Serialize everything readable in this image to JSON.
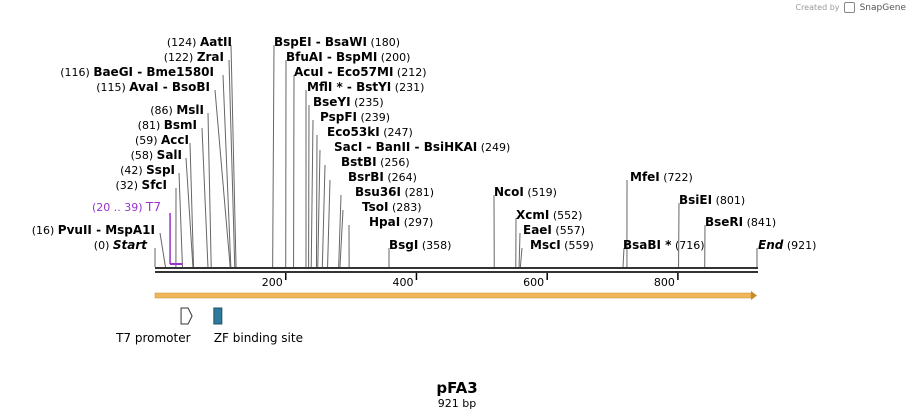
{
  "credit": {
    "prefix": "Created by",
    "brand": "SnapGene"
  },
  "map": {
    "name": "pFA3",
    "length_label": "921 bp",
    "length_bp": 921
  },
  "colors": {
    "site_line": "#666666",
    "backbone": "#333333",
    "promoter_label": "#9933cc",
    "promoter_feature": "#ffffff",
    "zf_feature": "#2e7a98",
    "orf_arrow": "#f0b75a"
  },
  "sites": [
    {
      "prefix": "(124)",
      "text": "AatII",
      "bp": 124
    },
    {
      "prefix": "(122)",
      "text": "ZraI",
      "bp": 122
    },
    {
      "prefix": "(116)",
      "text": "BaeGI  - Bme1580I",
      "bp": 116
    },
    {
      "prefix": "(115)",
      "text": "AvaI  - BsoBI",
      "bp": 115
    },
    {
      "prefix": "(86)",
      "text": "MslI",
      "bp": 86
    },
    {
      "prefix": "(81)",
      "text": "BsmI",
      "bp": 81
    },
    {
      "prefix": "(59)",
      "text": "AccI",
      "bp": 59
    },
    {
      "prefix": "(58)",
      "text": "SalI",
      "bp": 58
    },
    {
      "prefix": "(42)",
      "text": "SspI",
      "bp": 42
    },
    {
      "prefix": "(32)",
      "text": "SfcI",
      "bp": 32
    },
    {
      "prefix": "(16)",
      "text": "PvuII  - MspA1I",
      "bp": 16
    },
    {
      "prefix": "(0)",
      "text": "Start",
      "bp": 0,
      "italic": true
    },
    {
      "text": "BspEI  - BsaWI",
      "suffix": "(180)",
      "bp": 180
    },
    {
      "text": "BfuAI  - BspMI",
      "suffix": "(200)",
      "bp": 200
    },
    {
      "text": "AcuI  - Eco57MI",
      "suffix": "(212)",
      "bp": 212
    },
    {
      "text": "MflI * - BstYI",
      "suffix": "(231)",
      "bp": 231
    },
    {
      "text": "BseYI",
      "suffix": "(235)",
      "bp": 235
    },
    {
      "text": "PspFI",
      "suffix": "(239)",
      "bp": 239
    },
    {
      "text": "Eco53kI",
      "suffix": "(247)",
      "bp": 247
    },
    {
      "text": "SacI  - BanII  - BsiHKAI",
      "suffix": "(249)",
      "bp": 249
    },
    {
      "text": "BstBI",
      "suffix": "(256)",
      "bp": 256
    },
    {
      "text": "BsrBI",
      "suffix": "(264)",
      "bp": 264
    },
    {
      "text": "Bsu36I",
      "suffix": "(281)",
      "bp": 281
    },
    {
      "text": "TsoI",
      "suffix": "(283)",
      "bp": 283
    },
    {
      "text": "HpaI",
      "suffix": "(297)",
      "bp": 297
    },
    {
      "text": "BsgI",
      "suffix": "(358)",
      "bp": 358
    },
    {
      "text": "NcoI",
      "suffix": "(519)",
      "bp": 519
    },
    {
      "text": "XcmI",
      "suffix": "(552)",
      "bp": 552
    },
    {
      "text": "EaeI",
      "suffix": "(557)",
      "bp": 557
    },
    {
      "text": "MscI",
      "suffix": "(559)",
      "bp": 559
    },
    {
      "text": "MfeI",
      "suffix": "(722)",
      "bp": 722
    },
    {
      "text": "BsaBI *",
      "suffix": "(716)",
      "bp": 716
    },
    {
      "text": "BsiEI",
      "suffix": "(801)",
      "bp": 801
    },
    {
      "text": "BseRI",
      "suffix": "(841)",
      "bp": 841
    },
    {
      "text": "End",
      "suffix": "(921)",
      "bp": 921,
      "italic": true
    }
  ],
  "primer": {
    "prefix": "(20 .. 39)",
    "text": "T7",
    "start": 20,
    "end": 39
  },
  "ruler_ticks": [
    "200",
    "400",
    "600",
    "800"
  ],
  "features": [
    {
      "name": "T7 promoter",
      "start": 20,
      "end": 39,
      "shape": "promoter"
    },
    {
      "name": "ZF binding site",
      "start": 90,
      "end": 103,
      "shape": "box"
    }
  ]
}
